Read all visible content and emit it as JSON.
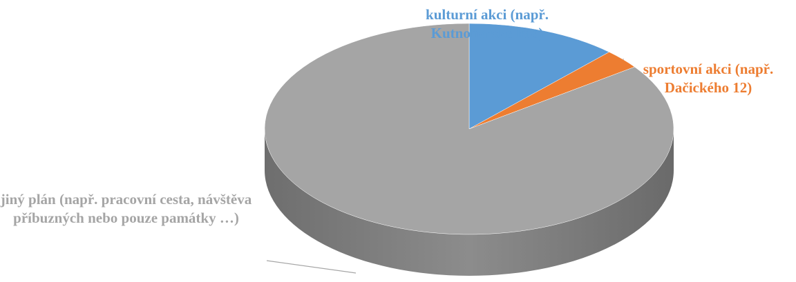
{
  "chart_data": {
    "type": "pie",
    "categories": [
      "kulturní akci (např. Kutnohorské léto)",
      "sportovní akci (např. Dačického 12)",
      "jiný plán (např. pracovní cesta, návštěva příbuzných nebo pouze památky …)"
    ],
    "values": [
      12,
      3,
      85
    ],
    "colors": [
      "#5b9bd5",
      "#ed7d31",
      "#a5a5a5"
    ],
    "three_d": true
  }
}
